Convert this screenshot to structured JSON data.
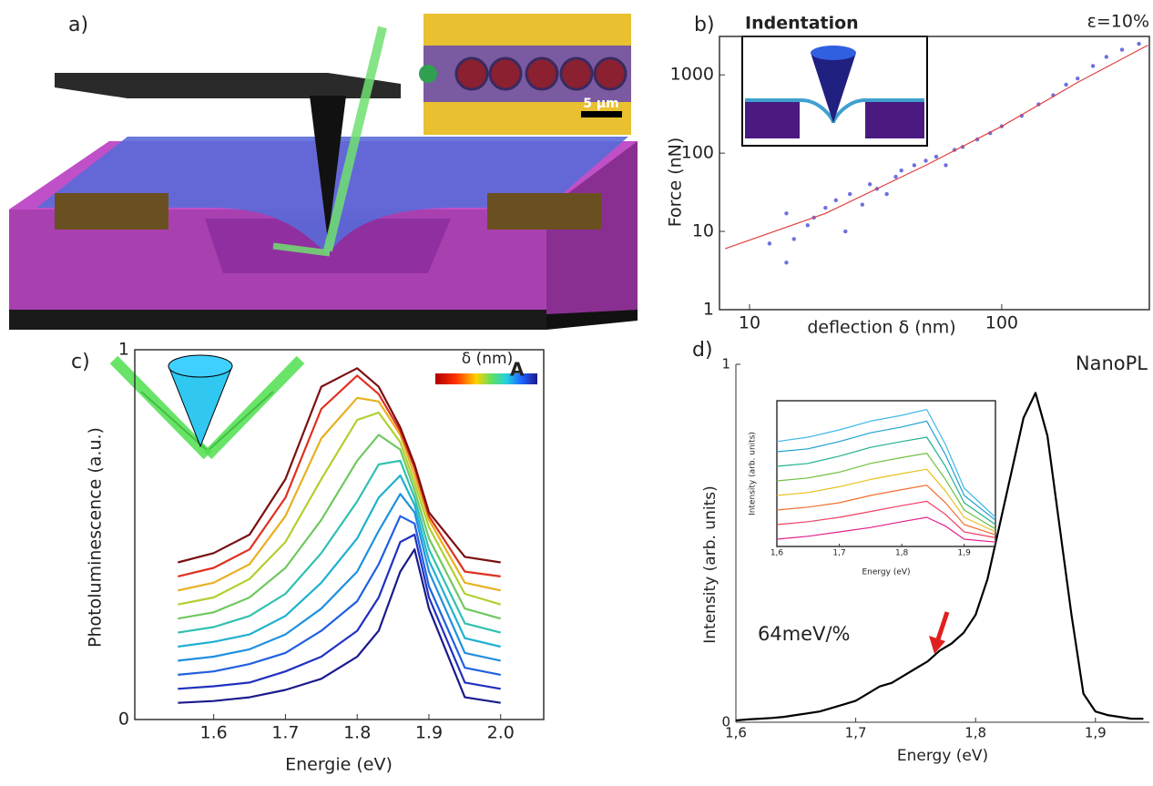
{
  "figure": {
    "panel_a": {
      "label": "a)",
      "scale_bar": "5 µm"
    }
  },
  "chart_data": [
    {
      "type": "scatter",
      "label": "b)",
      "title": "Indentation",
      "annotation": "ε=10%",
      "x_label": "deflection δ (nm)",
      "y_label": "Force (nN)",
      "xlog": true,
      "ylog": true,
      "xlim": [
        7.6,
        385
      ],
      "ylim": [
        1,
        3100
      ],
      "xticks": [
        10,
        100
      ],
      "yticks": [
        1,
        10,
        100,
        1000
      ],
      "series": [
        {
          "style": "markers",
          "color": "#6f6fe0",
          "x": [
            12,
            14,
            14,
            15,
            17,
            18,
            20,
            22,
            24,
            25,
            28,
            30,
            32,
            35,
            38,
            40,
            45,
            50,
            55,
            60,
            65,
            70,
            80,
            90,
            100,
            120,
            140,
            160,
            180,
            200,
            230,
            260,
            300,
            350
          ],
          "values": [
            7,
            4,
            17,
            8,
            12,
            15,
            20,
            25,
            10,
            30,
            22,
            40,
            35,
            30,
            50,
            60,
            70,
            80,
            90,
            70,
            110,
            120,
            150,
            180,
            220,
            300,
            420,
            550,
            750,
            900,
            1300,
            1700,
            2100,
            2500
          ]
        },
        {
          "style": "line",
          "color": "#e04040",
          "x": [
            8,
            20,
            50,
            100,
            200,
            380
          ],
          "values": [
            6,
            17,
            70,
            220,
            800,
            2400
          ]
        }
      ]
    },
    {
      "type": "line",
      "label": "c)",
      "annotation": "A",
      "colorbar_label": "δ (nm)",
      "x_label": "Energie (eV)",
      "y_label": "Photoluminescence (a.u.)",
      "xlim": [
        1.49,
        2.06
      ],
      "ylim": [
        0,
        1
      ],
      "xticks": [
        1.6,
        1.7,
        1.8,
        1.9,
        {
          "value": 2,
          "label": "2.0"
        }
      ],
      "yticks": [
        0,
        1
      ],
      "x": [
        1.55,
        1.6,
        1.65,
        1.7,
        1.75,
        1.8,
        1.83,
        1.86,
        1.88,
        1.9,
        1.95,
        2.0
      ],
      "series": [
        {
          "color": "#1a1a8c",
          "values": [
            0.045,
            0.05,
            0.06,
            0.08,
            0.11,
            0.17,
            0.24,
            0.4,
            0.46,
            0.3,
            0.06,
            0.045
          ]
        },
        {
          "color": "#2030c0",
          "values": [
            0.083,
            0.09,
            0.1,
            0.13,
            0.17,
            0.24,
            0.33,
            0.48,
            0.5,
            0.33,
            0.1,
            0.083
          ]
        },
        {
          "color": "#2060e0",
          "values": [
            0.121,
            0.13,
            0.15,
            0.18,
            0.24,
            0.32,
            0.42,
            0.55,
            0.53,
            0.36,
            0.14,
            0.121
          ]
        },
        {
          "color": "#2090e0",
          "values": [
            0.159,
            0.17,
            0.19,
            0.23,
            0.3,
            0.4,
            0.51,
            0.61,
            0.56,
            0.4,
            0.18,
            0.159
          ]
        },
        {
          "color": "#20b0d0",
          "values": [
            0.197,
            0.21,
            0.23,
            0.28,
            0.37,
            0.49,
            0.6,
            0.66,
            0.58,
            0.43,
            0.22,
            0.197
          ]
        },
        {
          "color": "#30c0b0",
          "values": [
            0.235,
            0.25,
            0.28,
            0.34,
            0.45,
            0.59,
            0.69,
            0.7,
            0.6,
            0.46,
            0.26,
            0.235
          ]
        },
        {
          "color": "#70c860",
          "values": [
            0.273,
            0.29,
            0.33,
            0.41,
            0.54,
            0.7,
            0.77,
            0.73,
            0.62,
            0.49,
            0.3,
            0.273
          ]
        },
        {
          "color": "#b0d030",
          "values": [
            0.311,
            0.33,
            0.38,
            0.48,
            0.65,
            0.81,
            0.83,
            0.75,
            0.64,
            0.52,
            0.34,
            0.311
          ]
        },
        {
          "color": "#e8b020",
          "values": [
            0.349,
            0.37,
            0.42,
            0.55,
            0.76,
            0.87,
            0.86,
            0.77,
            0.66,
            0.54,
            0.37,
            0.349
          ]
        },
        {
          "color": "#e03020",
          "values": [
            0.387,
            0.41,
            0.46,
            0.6,
            0.84,
            0.93,
            0.88,
            0.78,
            0.68,
            0.55,
            0.4,
            0.387
          ]
        },
        {
          "color": "#7a1010",
          "values": [
            0.425,
            0.45,
            0.5,
            0.65,
            0.9,
            0.95,
            0.9,
            0.79,
            0.69,
            0.56,
            0.44,
            0.425
          ]
        }
      ]
    },
    {
      "type": "line",
      "label": "d)",
      "title": "NanoPL",
      "annotation": "64meV/%",
      "x_label": "Energy (eV)",
      "y_label": "Intensity (arb. units)",
      "xlim": [
        1.6,
        1.945
      ],
      "ylim": [
        0,
        1
      ],
      "xticks": [
        {
          "value": 1.6,
          "label": "1,6"
        },
        {
          "value": 1.7,
          "label": "1,7"
        },
        {
          "value": 1.8,
          "label": "1,8"
        },
        {
          "value": 1.9,
          "label": "1,9"
        }
      ],
      "yticks": [
        0,
        1
      ],
      "x": [
        1.6,
        1.61,
        1.62,
        1.63,
        1.64,
        1.65,
        1.66,
        1.67,
        1.68,
        1.69,
        1.7,
        1.71,
        1.72,
        1.73,
        1.74,
        1.75,
        1.76,
        1.77,
        1.78,
        1.79,
        1.8,
        1.81,
        1.82,
        1.83,
        1.84,
        1.85,
        1.86,
        1.87,
        1.88,
        1.89,
        1.9,
        1.91,
        1.92,
        1.93,
        1.94
      ],
      "series": [
        {
          "color": "#000000",
          "values": [
            0.005,
            0.008,
            0.01,
            0.012,
            0.015,
            0.02,
            0.025,
            0.03,
            0.04,
            0.05,
            0.06,
            0.08,
            0.1,
            0.11,
            0.13,
            0.15,
            0.17,
            0.2,
            0.22,
            0.25,
            0.3,
            0.4,
            0.55,
            0.7,
            0.85,
            0.92,
            0.8,
            0.55,
            0.3,
            0.08,
            0.03,
            0.02,
            0.015,
            0.01,
            0.01
          ]
        }
      ]
    },
    {
      "type": "line",
      "x_label": "Energy (eV)",
      "y_label": "Intensity (arb. units)",
      "xlim": [
        1.6,
        1.95
      ],
      "ylim": [
        0,
        1
      ],
      "xticks": [
        {
          "value": 1.6,
          "label": "1,6"
        },
        {
          "value": 1.7,
          "label": "1,7"
        },
        {
          "value": 1.8,
          "label": "1,8"
        },
        {
          "value": 1.9,
          "label": "1,9"
        }
      ],
      "x": [
        1.6,
        1.65,
        1.7,
        1.75,
        1.8,
        1.84,
        1.87,
        1.9,
        1.95
      ],
      "series": [
        {
          "color": "#e0208a",
          "values": [
            0.05,
            0.07,
            0.1,
            0.13,
            0.17,
            0.2,
            0.14,
            0.05,
            0.03
          ]
        },
        {
          "color": "#f04060",
          "values": [
            0.15,
            0.17,
            0.2,
            0.24,
            0.28,
            0.31,
            0.22,
            0.1,
            0.06
          ]
        },
        {
          "color": "#f07030",
          "values": [
            0.25,
            0.27,
            0.3,
            0.35,
            0.39,
            0.42,
            0.3,
            0.15,
            0.08
          ]
        },
        {
          "color": "#e8c020",
          "values": [
            0.35,
            0.37,
            0.41,
            0.46,
            0.5,
            0.53,
            0.38,
            0.2,
            0.1
          ]
        },
        {
          "color": "#70c040",
          "values": [
            0.45,
            0.47,
            0.51,
            0.57,
            0.61,
            0.64,
            0.46,
            0.25,
            0.12
          ]
        },
        {
          "color": "#20b090",
          "values": [
            0.55,
            0.57,
            0.62,
            0.68,
            0.72,
            0.75,
            0.55,
            0.3,
            0.15
          ]
        },
        {
          "color": "#20a0d0",
          "values": [
            0.65,
            0.67,
            0.72,
            0.78,
            0.82,
            0.86,
            0.63,
            0.35,
            0.18
          ]
        },
        {
          "color": "#40b8e8",
          "values": [
            0.72,
            0.75,
            0.8,
            0.86,
            0.9,
            0.94,
            0.7,
            0.4,
            0.2
          ]
        }
      ]
    }
  ]
}
